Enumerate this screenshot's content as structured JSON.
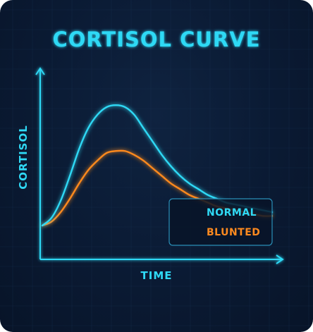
{
  "chart_data": {
    "type": "line",
    "title": "CORTISOL CURVE",
    "xlabel": "TIME",
    "ylabel": "CORTISOL",
    "x_ticks_shown": false,
    "y_ticks_shown": false,
    "grid": true,
    "legend_position": "bottom-right",
    "xlim": [
      0,
      100
    ],
    "ylim": [
      0,
      100
    ],
    "series": [
      {
        "name": "NORMAL",
        "color": "#2fd9f5",
        "x": [
          0,
          4,
          8,
          12,
          16,
          20,
          24,
          28,
          32,
          36,
          40,
          44,
          48,
          52,
          56,
          60,
          64,
          68,
          72,
          76,
          80,
          84,
          88,
          92,
          96,
          100
        ],
        "y": [
          17,
          21,
          30,
          43,
          57,
          68,
          75,
          79,
          80,
          79,
          75,
          68,
          61,
          54,
          48,
          43,
          39,
          36,
          33,
          31,
          29,
          28,
          27,
          26,
          25,
          24
        ]
      },
      {
        "name": "BLUNTED",
        "color": "#ff8a1f",
        "x": [
          0,
          4,
          8,
          12,
          16,
          20,
          24,
          28,
          32,
          36,
          40,
          44,
          48,
          52,
          56,
          60,
          64,
          68,
          72,
          76,
          80,
          84,
          88,
          92,
          96,
          100
        ],
        "y": [
          17,
          19,
          24,
          31,
          39,
          46,
          51,
          55,
          56,
          56,
          54,
          51,
          47,
          43,
          39,
          36,
          33,
          31,
          29,
          27,
          26,
          25,
          24,
          23,
          22,
          22
        ]
      }
    ]
  }
}
